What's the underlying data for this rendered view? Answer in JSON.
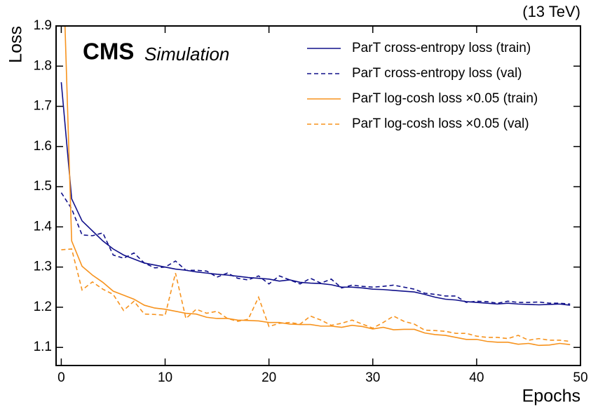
{
  "chart_data": {
    "type": "line",
    "annotations": {
      "energy": "(13 TeV)",
      "experiment": "CMS",
      "label": "Simulation"
    },
    "xlabel": "Epochs",
    "ylabel": "Loss",
    "x": [
      0,
      1,
      2,
      3,
      4,
      5,
      6,
      7,
      8,
      9,
      10,
      11,
      12,
      13,
      14,
      15,
      16,
      17,
      18,
      19,
      20,
      21,
      22,
      23,
      24,
      25,
      26,
      27,
      28,
      29,
      30,
      31,
      32,
      33,
      34,
      35,
      36,
      37,
      38,
      39,
      40,
      41,
      42,
      43,
      44,
      45,
      46,
      47,
      48,
      49
    ],
    "xlim": [
      -0.5,
      50
    ],
    "xticks": [
      0,
      10,
      20,
      30,
      40,
      50
    ],
    "ylim": [
      1.055,
      1.9
    ],
    "yticks": [
      1.1,
      1.2,
      1.3,
      1.4,
      1.5,
      1.6,
      1.7,
      1.8,
      1.9
    ],
    "legend": "upper right",
    "series": [
      {
        "name": "ParT cross-entropy loss (train)",
        "color": "#10108a",
        "linestyle": "solid",
        "values": [
          1.76,
          1.47,
          1.415,
          1.39,
          1.365,
          1.345,
          1.33,
          1.32,
          1.31,
          1.305,
          1.3,
          1.295,
          1.292,
          1.288,
          1.285,
          1.282,
          1.28,
          1.277,
          1.274,
          1.272,
          1.27,
          1.265,
          1.268,
          1.262,
          1.26,
          1.259,
          1.256,
          1.25,
          1.25,
          1.248,
          1.245,
          1.244,
          1.242,
          1.24,
          1.238,
          1.232,
          1.225,
          1.22,
          1.218,
          1.214,
          1.212,
          1.21,
          1.208,
          1.21,
          1.208,
          1.207,
          1.206,
          1.207,
          1.208,
          1.205
        ]
      },
      {
        "name": "ParT cross-entropy loss (val)",
        "color": "#10108a",
        "linestyle": "dashed",
        "values": [
          1.485,
          1.445,
          1.38,
          1.378,
          1.385,
          1.33,
          1.322,
          1.335,
          1.31,
          1.298,
          1.3,
          1.315,
          1.292,
          1.292,
          1.29,
          1.275,
          1.285,
          1.272,
          1.268,
          1.278,
          1.258,
          1.278,
          1.268,
          1.258,
          1.272,
          1.26,
          1.27,
          1.248,
          1.255,
          1.252,
          1.25,
          1.252,
          1.255,
          1.25,
          1.245,
          1.235,
          1.232,
          1.228,
          1.228,
          1.212,
          1.215,
          1.214,
          1.21,
          1.215,
          1.212,
          1.212,
          1.213,
          1.21,
          1.21,
          1.208
        ]
      },
      {
        "name": "ParT log-cosh loss ×0.05 (train)",
        "color": "#f7931e",
        "linestyle": "solid",
        "values": [
          2.2,
          1.365,
          1.302,
          1.28,
          1.262,
          1.24,
          1.23,
          1.22,
          1.205,
          1.198,
          1.195,
          1.19,
          1.185,
          1.183,
          1.175,
          1.172,
          1.172,
          1.168,
          1.167,
          1.166,
          1.162,
          1.162,
          1.158,
          1.157,
          1.157,
          1.153,
          1.153,
          1.15,
          1.155,
          1.152,
          1.146,
          1.15,
          1.144,
          1.145,
          1.145,
          1.136,
          1.132,
          1.13,
          1.125,
          1.12,
          1.12,
          1.115,
          1.113,
          1.113,
          1.108,
          1.11,
          1.105,
          1.106,
          1.11,
          1.107
        ]
      },
      {
        "name": "ParT log-cosh loss ×0.05 (val)",
        "color": "#f7931e",
        "linestyle": "dashed",
        "values": [
          1.343,
          1.345,
          1.243,
          1.263,
          1.245,
          1.232,
          1.192,
          1.215,
          1.183,
          1.182,
          1.18,
          1.285,
          1.172,
          1.195,
          1.185,
          1.19,
          1.172,
          1.165,
          1.17,
          1.225,
          1.152,
          1.16,
          1.162,
          1.158,
          1.178,
          1.168,
          1.155,
          1.16,
          1.168,
          1.158,
          1.148,
          1.162,
          1.178,
          1.165,
          1.158,
          1.143,
          1.142,
          1.14,
          1.135,
          1.135,
          1.128,
          1.125,
          1.125,
          1.122,
          1.13,
          1.118,
          1.122,
          1.118,
          1.118,
          1.115
        ]
      }
    ]
  }
}
